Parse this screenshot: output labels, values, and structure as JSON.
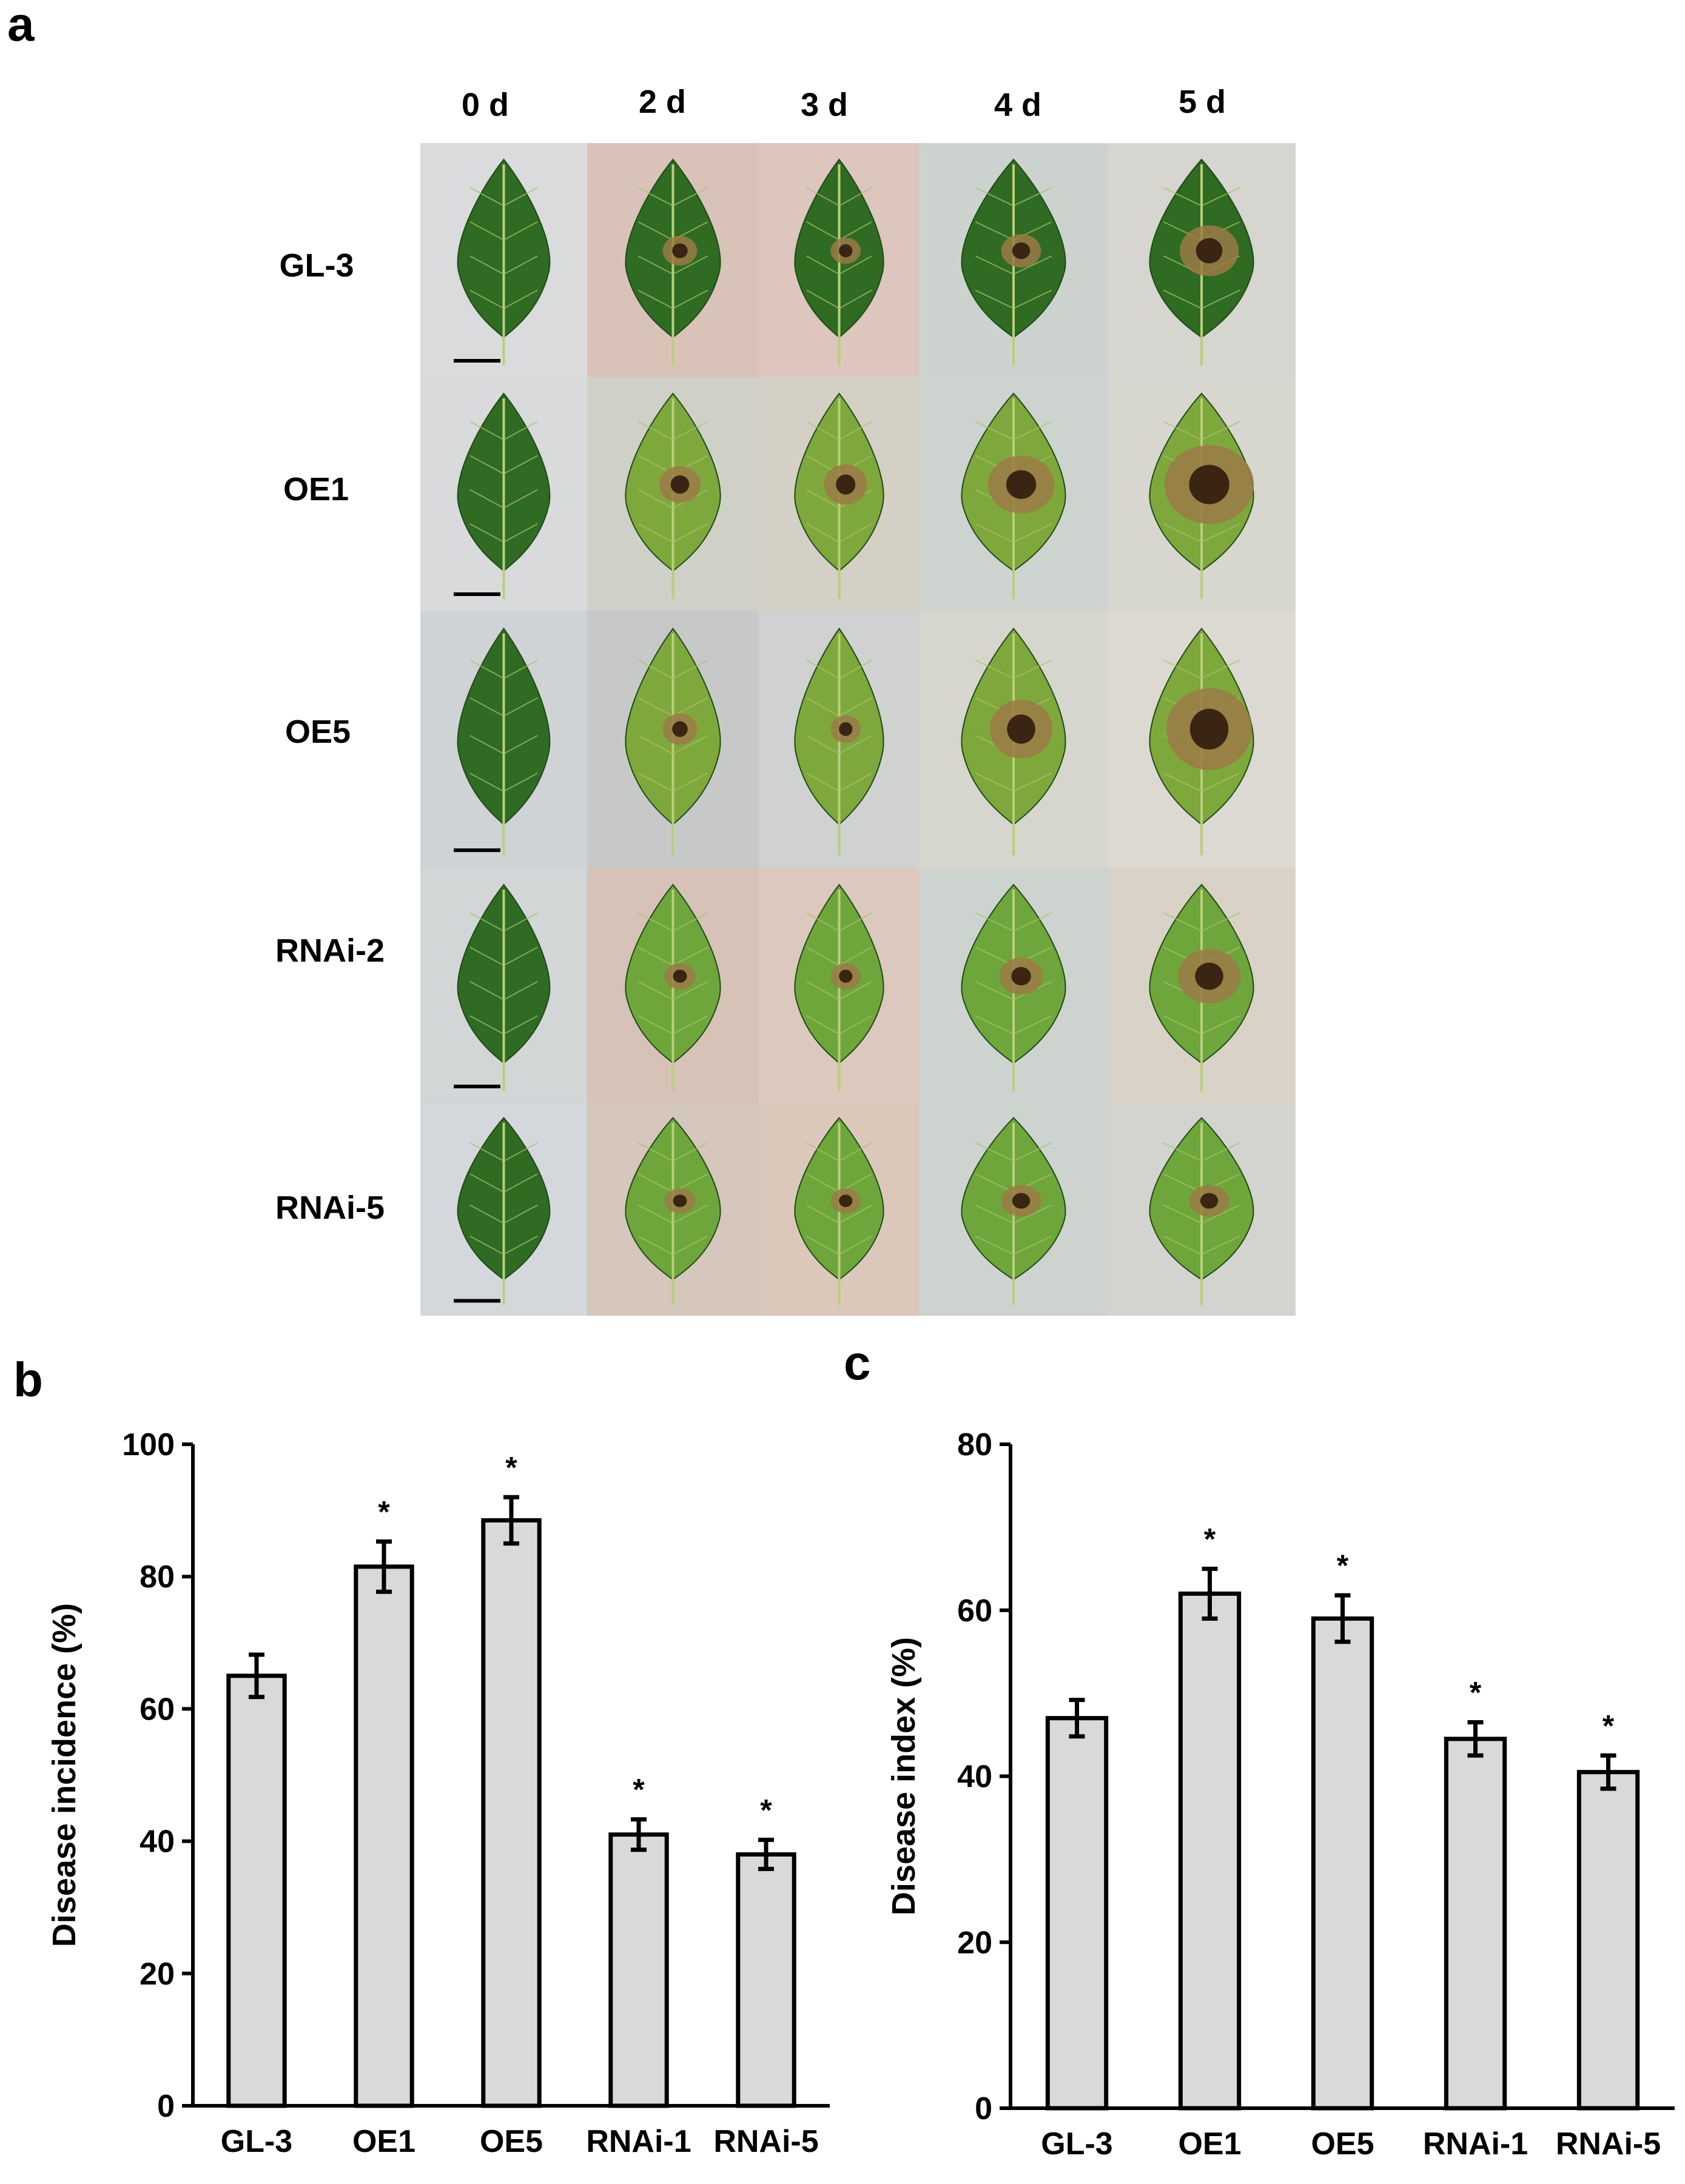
{
  "panel_a": {
    "letter": "a",
    "columns": [
      "0 d",
      "2 d",
      "3 d",
      "4 d",
      "5 d"
    ],
    "rows": [
      "GL-3",
      "OE1",
      "OE5",
      "RNAi-2",
      "RNAi-5"
    ],
    "lesion_level": [
      [
        0,
        0.25,
        0.2,
        0.3,
        0.55
      ],
      [
        0,
        0.35,
        0.4,
        0.65,
        0.95
      ],
      [
        0,
        0.25,
        0.2,
        0.6,
        0.9
      ],
      [
        0,
        0.2,
        0.2,
        0.35,
        0.6
      ],
      [
        0,
        0.2,
        0.2,
        0.3,
        0.3
      ]
    ],
    "leaf_colors": [
      "#2f6b22",
      "#7ea83c",
      "#7ea83c",
      "#6ea63b",
      "#6ea63b"
    ],
    "background_colors": [
      [
        "#d9dbdc",
        "#d9c3b8",
        "#dcc6bd",
        "#ccd3cf",
        "#d6d5cf"
      ],
      [
        "#d8dadb",
        "#cfd0c8",
        "#d4d0c5",
        "#cdd3cf",
        "#d7d6cf"
      ],
      [
        "#cfd3d6",
        "#c6c9c8",
        "#cfd2d1",
        "#d6d6cf",
        "#dbd9d1"
      ],
      [
        "#d3d6d7",
        "#d6c2b6",
        "#dcc8bc",
        "#cdd3cf",
        "#d8d3c6"
      ],
      [
        "#d4d8dc",
        "#d5c7bb",
        "#dcc8bb",
        "#cdd3cf",
        "#d3d4cf"
      ]
    ]
  },
  "panel_b_letter": "b",
  "panel_c_letter": "c",
  "chart_data": [
    {
      "type": "bar",
      "panel": "b",
      "categories": [
        "GL-3",
        "OE1",
        "OE5",
        "RNAi-1",
        "RNAi-5"
      ],
      "values": [
        65,
        81.5,
        88.5,
        41,
        38
      ],
      "errors": [
        3.2,
        3.8,
        3.5,
        2.3,
        2.2
      ],
      "significance": [
        "",
        "*",
        "*",
        "*",
        "*"
      ],
      "ylabel": "Disease incidence (%)",
      "xlabel": "",
      "ylim": [
        0,
        100
      ],
      "yticks": [
        0,
        20,
        40,
        60,
        80,
        100
      ],
      "bar_color": "#d9d9d9"
    },
    {
      "type": "bar",
      "panel": "c",
      "categories": [
        "GL-3",
        "OE1",
        "OE5",
        "RNAi-1",
        "RNAi-5"
      ],
      "values": [
        47,
        62,
        59,
        44.5,
        40.5
      ],
      "errors": [
        2.2,
        3.0,
        2.8,
        2.0,
        2.0
      ],
      "significance": [
        "",
        "*",
        "*",
        "*",
        "*"
      ],
      "ylabel": "Disease index (%)",
      "xlabel": "",
      "ylim": [
        0,
        80
      ],
      "yticks": [
        0,
        20,
        40,
        60,
        80
      ],
      "bar_color": "#d9d9d9"
    }
  ]
}
